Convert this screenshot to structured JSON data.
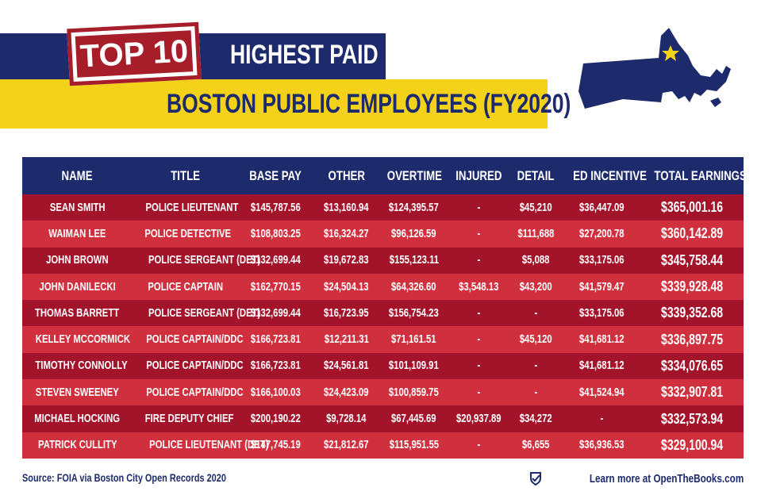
{
  "header": {
    "badge": "TOP 10",
    "title": "HIGHEST PAID",
    "subtitle": "BOSTON PUBLIC EMPLOYEES (FY2020)"
  },
  "table": {
    "columns": [
      "NAME",
      "TITLE",
      "BASE PAY",
      "OTHER",
      "OVERTIME",
      "INJURED",
      "DETAIL",
      "ED INCENTIVE",
      "TOTAL EARNINGS"
    ],
    "rows": [
      [
        "SEAN SMITH",
        "POLICE LIEUTENANT",
        "$145,787.56",
        "$13,160.94",
        "$124,395.57",
        "-",
        "$45,210",
        "$36,447.09",
        "$365,001.16"
      ],
      [
        "WAIMAN LEE",
        "POLICE DETECTIVE",
        "$108,803.25",
        "$16,324.27",
        "$96,126.59",
        "-",
        "$111,688",
        "$27,200.78",
        "$360,142.89"
      ],
      [
        "JOHN BROWN",
        "POLICE SERGEANT (DET)",
        "$132,699.44",
        "$19,672.83",
        "$155,123.11",
        "-",
        "$5,088",
        "$33,175.06",
        "$345,758.44"
      ],
      [
        "JOHN DANILECKI",
        "POLICE CAPTAIN",
        "$162,770.15",
        "$24,504.13",
        "$64,326.60",
        "$3,548.13",
        "$43,200",
        "$41,579.47",
        "$339,928.48"
      ],
      [
        "THOMAS BARRETT",
        "POLICE SERGEANT (DET)",
        "$132,699.44",
        "$16,723.95",
        "$156,754.23",
        "-",
        "-",
        "$33,175.06",
        "$339,352.68"
      ],
      [
        "KELLEY MCCORMICK",
        "POLICE CAPTAIN/DDC",
        "$166,723.81",
        "$12,211.31",
        "$71,161.51",
        "-",
        "$45,120",
        "$41,681.12",
        "$336,897.75"
      ],
      [
        "TIMOTHY CONNOLLY",
        "POLICE CAPTAIN/DDC",
        "$166,723.81",
        "$24,561.81",
        "$101,109.91",
        "-",
        "-",
        "$41,681.12",
        "$334,076.65"
      ],
      [
        "STEVEN SWEENEY",
        "POLICE CAPTAIN/DDC",
        "$166,100.03",
        "$24,423.09",
        "$100,859.75",
        "-",
        "-",
        "$41,524.94",
        "$332,907.81"
      ],
      [
        "MICHAEL HOCKING",
        "FIRE DEPUTY CHIEF",
        "$200,190.22",
        "$9,728.14",
        "$67,445.69",
        "$20,937.89",
        "$34,272",
        "-",
        "$332,573.94"
      ],
      [
        "PATRICK CULLITY",
        "POLICE LIEUTENANT (DET)",
        "$147,745.19",
        "$21,812.67",
        "$115,951.55",
        "-",
        "$6,655",
        "$36,936.53",
        "$329,100.94"
      ]
    ]
  },
  "footer": {
    "source": "Source: FOIA via Boston City Open Records 2020",
    "link": "Learn more at OpenTheBooks.com"
  }
}
